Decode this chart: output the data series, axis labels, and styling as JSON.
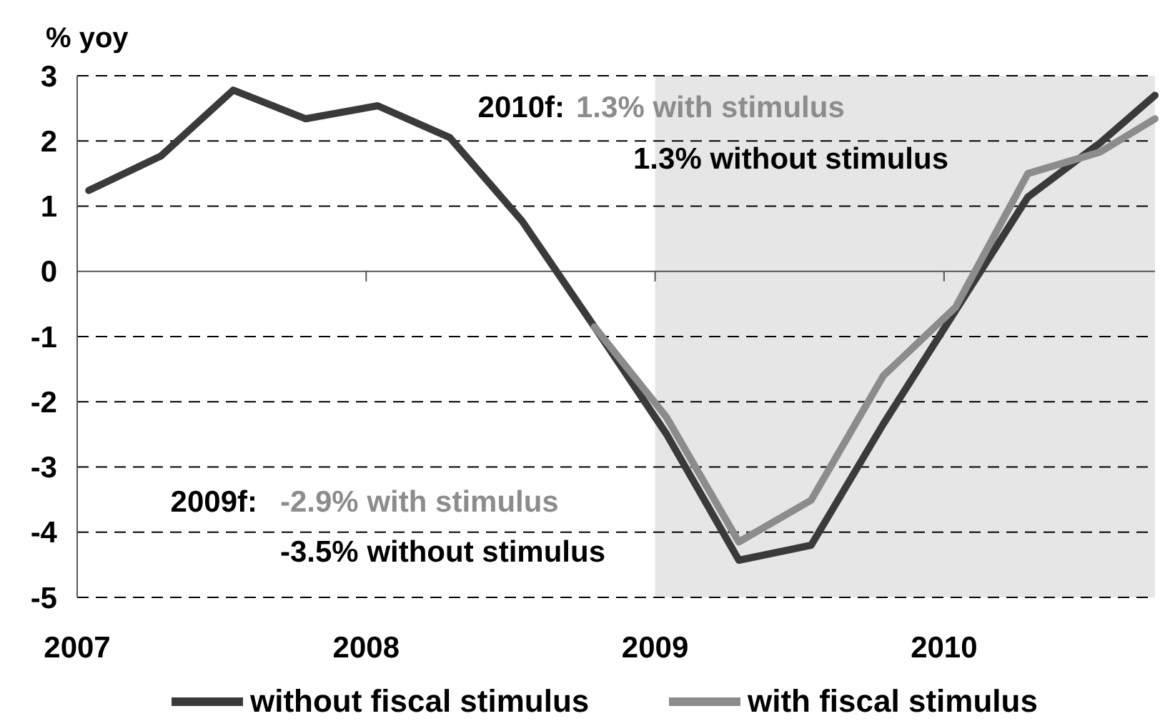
{
  "chart_data": {
    "type": "line",
    "ylabel": "% yoy",
    "x": [
      2007.04,
      2007.29,
      2007.54,
      2007.79,
      2008.04,
      2008.29,
      2008.54,
      2008.79,
      2009.04,
      2009.29,
      2009.54,
      2009.79,
      2010.04,
      2010.29,
      2010.54,
      2010.73
    ],
    "series": [
      {
        "name": "without fiscal stimulus",
        "color": "#3a3a3a",
        "values": [
          1.24,
          1.77,
          2.78,
          2.34,
          2.54,
          2.05,
          0.77,
          -0.85,
          -2.5,
          -4.43,
          -4.2,
          -2.34,
          -0.6,
          1.14,
          1.97,
          2.7
        ]
      },
      {
        "name": "with fiscal stimulus",
        "color": "#8c8c8c",
        "values": [
          null,
          null,
          null,
          null,
          null,
          null,
          null,
          -0.85,
          -2.24,
          -4.15,
          -3.51,
          -1.6,
          -0.55,
          1.5,
          1.83,
          2.34
        ]
      }
    ],
    "xlim": [
      2007,
      2010.73
    ],
    "xticks": [
      2007,
      2008,
      2009,
      2010
    ],
    "ylim": [
      -5,
      3
    ],
    "yticks": [
      -5,
      -4,
      -3,
      -2,
      -1,
      0,
      1,
      2,
      3
    ],
    "grid": "y",
    "legend": "bottom",
    "line_style": "solid",
    "marker": "none",
    "bands": [
      {
        "axis": "x",
        "from": 2009,
        "to": 2010.73,
        "color": "#e6e6e6"
      }
    ],
    "annotations": [
      "2010f:",
      "1.3% with stimulus",
      "1.3% without stimulus",
      "2009f:",
      "-2.9% with stimulus",
      "-3.5% without stimulus"
    ]
  }
}
